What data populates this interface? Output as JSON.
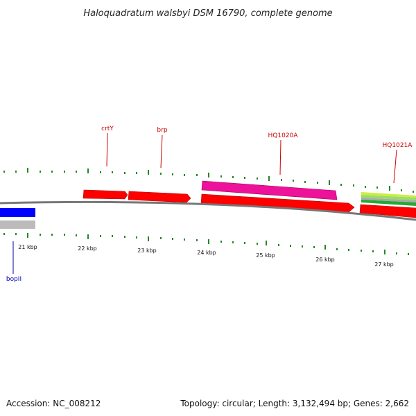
{
  "title": "Haloquadratum walsbyi DSM 16790, complete genome",
  "footer": {
    "accession": "Accession: NC_008212",
    "stats": "Topology: circular; Length: 3,132,494 bp; Genes: 2,662"
  },
  "colors": {
    "forward_gene": "#ff0000",
    "reverse_gene": "#0000ff",
    "highlight_gene": "#ee1199",
    "label_forward": "#cc0000",
    "label_reverse": "#0000aa",
    "tick": "#228822",
    "backbone": "#777777"
  },
  "axis": {
    "ticks": [
      {
        "label": "21 kbp"
      },
      {
        "label": "22 kbp"
      },
      {
        "label": "23 kbp"
      },
      {
        "label": "24 kbp"
      },
      {
        "label": "25 kbp"
      },
      {
        "label": "26 kbp"
      },
      {
        "label": "27 kbp"
      }
    ]
  },
  "gene_labels": [
    {
      "text": "crtY",
      "strand": "forward"
    },
    {
      "text": "brp",
      "strand": "forward"
    },
    {
      "text": "HQ1020A",
      "strand": "forward"
    },
    {
      "text": "HQ1021A",
      "strand": "forward"
    },
    {
      "text": "bopII",
      "strand": "reverse"
    }
  ]
}
